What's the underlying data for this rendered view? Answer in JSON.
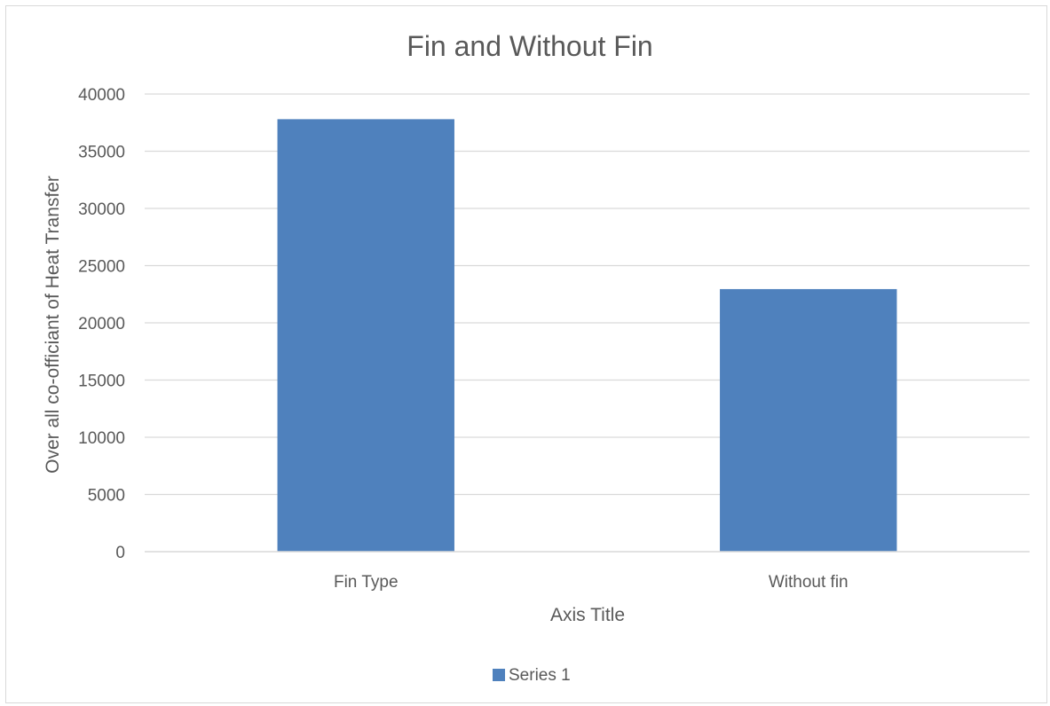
{
  "chart_data": {
    "type": "bar",
    "title": "Fin and Without Fin",
    "xlabel": "Axis Title",
    "ylabel": "Over all co-officiant of Heat Transfer",
    "categories": [
      "Fin Type",
      "Without fin"
    ],
    "series": [
      {
        "name": "Series 1",
        "values": [
          37800,
          22950
        ],
        "color": "#4f81bd"
      }
    ],
    "ylim": [
      0,
      40000
    ],
    "yticks": [
      0,
      5000,
      10000,
      15000,
      20000,
      25000,
      30000,
      35000,
      40000
    ],
    "grid": true,
    "legend": "bottom"
  }
}
